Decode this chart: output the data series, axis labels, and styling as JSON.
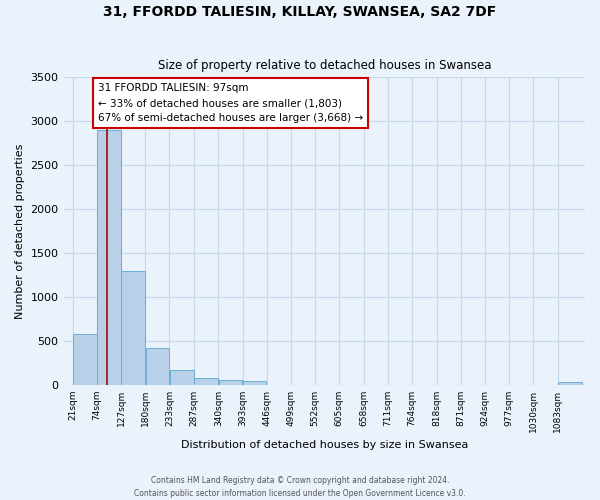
{
  "title": "31, FFORDD TALIESIN, KILLAY, SWANSEA, SA2 7DF",
  "subtitle": "Size of property relative to detached houses in Swansea",
  "xlabel": "Distribution of detached houses by size in Swansea",
  "ylabel": "Number of detached properties",
  "bin_labels": [
    "21sqm",
    "74sqm",
    "127sqm",
    "180sqm",
    "233sqm",
    "287sqm",
    "340sqm",
    "393sqm",
    "446sqm",
    "499sqm",
    "552sqm",
    "605sqm",
    "658sqm",
    "711sqm",
    "764sqm",
    "818sqm",
    "871sqm",
    "924sqm",
    "977sqm",
    "1030sqm",
    "1083sqm"
  ],
  "bar_values": [
    580,
    2900,
    1300,
    420,
    170,
    75,
    50,
    45,
    0,
    0,
    0,
    0,
    0,
    0,
    0,
    0,
    0,
    0,
    0,
    0,
    30
  ],
  "bar_color": "#b8d0e8",
  "bar_edge_color": "#6aaed6",
  "background_color": "#eaf2fb",
  "grid_color": "#c5d8ec",
  "property_line_x": 97,
  "property_line_color": "#aa0000",
  "annotation_title": "31 FFORDD TALIESIN: 97sqm",
  "annotation_line1": "← 33% of detached houses are smaller (1,803)",
  "annotation_line2": "67% of semi-detached houses are larger (3,668) →",
  "annotation_box_color": "#ffffff",
  "annotation_border_color": "#cc0000",
  "ylim": [
    0,
    3500
  ],
  "yticks": [
    0,
    500,
    1000,
    1500,
    2000,
    2500,
    3000,
    3500
  ],
  "footer_line1": "Contains HM Land Registry data © Crown copyright and database right 2024.",
  "footer_line2": "Contains public sector information licensed under the Open Government Licence v3.0."
}
